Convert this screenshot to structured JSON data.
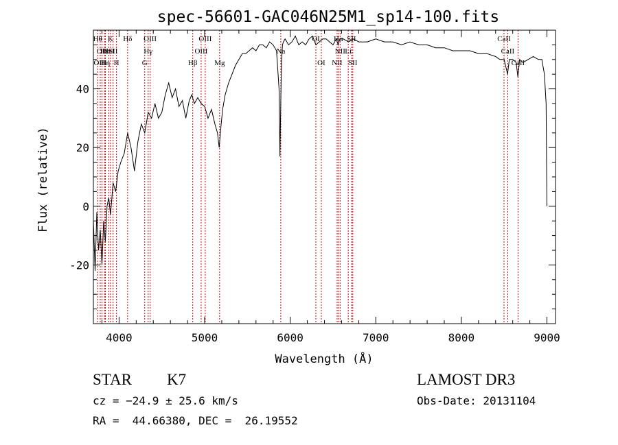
{
  "chart_data": {
    "type": "line",
    "title": "spec-56601-GAC046N25M1_sp14-100.fits",
    "xlabel": "Wavelength (Å)",
    "ylabel": "Flux (relative)",
    "xlim": [
      3700,
      9100
    ],
    "ylim": [
      -40,
      60
    ],
    "x_ticks": [
      4000,
      5000,
      6000,
      7000,
      8000,
      9000
    ],
    "y_ticks": [
      -20,
      0,
      20,
      40
    ],
    "x_tick_labels": [
      "4000",
      "5000",
      "6000",
      "7000",
      "8000",
      "9000"
    ],
    "y_tick_labels": [
      "-20",
      "0",
      "20",
      "40"
    ],
    "grid": false,
    "line_color": "#000000",
    "marker_color": "#cc0000",
    "series": [
      {
        "x": [
          3700,
          3720,
          3740,
          3760,
          3780,
          3800,
          3820,
          3840,
          3860,
          3880,
          3900,
          3930,
          3960,
          3990,
          4020,
          4060,
          4100,
          4140,
          4180,
          4220,
          4260,
          4300,
          4340,
          4380,
          4420,
          4460,
          4500,
          4540,
          4580,
          4620,
          4660,
          4700,
          4740,
          4780,
          4820,
          4850,
          4880,
          4920,
          4960,
          5000,
          5040,
          5080,
          5120,
          5150,
          5170,
          5190,
          5210,
          5240,
          5280,
          5320,
          5360,
          5400,
          5440,
          5480,
          5520,
          5560,
          5600,
          5640,
          5680,
          5720,
          5760,
          5800,
          5840,
          5870,
          5880,
          5890,
          5895,
          5900,
          5910,
          5920,
          5940,
          5980,
          6020,
          6060,
          6100,
          6140,
          6180,
          6220,
          6260,
          6300,
          6340,
          6380,
          6420,
          6460,
          6500,
          6540,
          6560,
          6580,
          6620,
          6680,
          6740,
          6800,
          6900,
          7000,
          7100,
          7200,
          7300,
          7400,
          7500,
          7600,
          7700,
          7800,
          7900,
          8000,
          8100,
          8200,
          8300,
          8400,
          8450,
          8500,
          8540,
          8560,
          8600,
          8640,
          8660,
          8680,
          8720,
          8780,
          8840,
          8900,
          8940,
          8970,
          8990,
          9000
        ],
        "y": [
          -5,
          -22,
          -2,
          -15,
          -8,
          -20,
          -5,
          -12,
          0,
          3,
          -3,
          8,
          5,
          12,
          15,
          18,
          25,
          20,
          12,
          22,
          28,
          25,
          32,
          30,
          35,
          30,
          32,
          38,
          42,
          37,
          40,
          34,
          36,
          30,
          36,
          38,
          35,
          37,
          35,
          34,
          30,
          33,
          28,
          25,
          20,
          27,
          33,
          38,
          42,
          45,
          48,
          50,
          52,
          52,
          53,
          54,
          53,
          55,
          55,
          54,
          56,
          55,
          53,
          40,
          17,
          35,
          45,
          50,
          55,
          56,
          57,
          55,
          56,
          58,
          55,
          56,
          55,
          57,
          58,
          55,
          56,
          57,
          57,
          56,
          55,
          57,
          55,
          57,
          57,
          56,
          57,
          56,
          56,
          57,
          56,
          56,
          55,
          56,
          55,
          55,
          54,
          54,
          53,
          53,
          53,
          52,
          52,
          51,
          50,
          50,
          45,
          50,
          50,
          49,
          44,
          50,
          49,
          50,
          51,
          50,
          50,
          45,
          35,
          0
        ]
      }
    ],
    "line_markers": [
      {
        "x": 3750,
        "label": "Hθ",
        "row": 1
      },
      {
        "x": 3800,
        "label": "OII",
        "row": 2
      },
      {
        "x": 3780,
        "label": "OIII",
        "row": 3
      },
      {
        "x": 3830,
        "label": "Hε",
        "row": 2
      },
      {
        "x": 3840,
        "label": "Hη",
        "row": 3
      },
      {
        "x": 3880,
        "label": "HeI",
        "row": 2
      },
      {
        "x": 3900,
        "label": "K",
        "row": 1
      },
      {
        "x": 3930,
        "label": "SII",
        "row": 2
      },
      {
        "x": 3970,
        "label": "H",
        "row": 3
      },
      {
        "x": 4100,
        "label": "Hδ",
        "row": 1
      },
      {
        "x": 4300,
        "label": "G",
        "row": 3
      },
      {
        "x": 4340,
        "label": "Hγ",
        "row": 2
      },
      {
        "x": 4363,
        "label": "OIII",
        "row": 1
      },
      {
        "x": 4861,
        "label": "Hβ",
        "row": 3
      },
      {
        "x": 4959,
        "label": "OIII",
        "row": 2
      },
      {
        "x": 5007,
        "label": "OIII",
        "row": 1
      },
      {
        "x": 5175,
        "label": "Mg",
        "row": 3
      },
      {
        "x": 5890,
        "label": "Na",
        "row": 2
      },
      {
        "x": 6300,
        "label": "OI",
        "row": 1
      },
      {
        "x": 6363,
        "label": "OI",
        "row": 3
      },
      {
        "x": 6548,
        "label": "NII",
        "row": 3
      },
      {
        "x": 6563,
        "label": "Hα",
        "row": 1
      },
      {
        "x": 6583,
        "label": "NII",
        "row": 2
      },
      {
        "x": 6678,
        "label": "Li",
        "row": 2
      },
      {
        "x": 6716,
        "label": "SII",
        "row": 1
      },
      {
        "x": 6731,
        "label": "SII",
        "row": 3
      },
      {
        "x": 8498,
        "label": "CaII",
        "row": 1
      },
      {
        "x": 8542,
        "label": "CaII",
        "row": 2
      },
      {
        "x": 8662,
        "label": "CaII",
        "row": 3
      }
    ]
  },
  "info": {
    "object_class": "STAR",
    "subclass": "K7",
    "survey": "LAMOST DR3",
    "redshift_line": "cz = −24.9 ± 25.6 km/s",
    "obs_date_line": "Obs-Date: 20131104",
    "coords_line": "RA =  44.66380, DEC =  26.19552"
  }
}
